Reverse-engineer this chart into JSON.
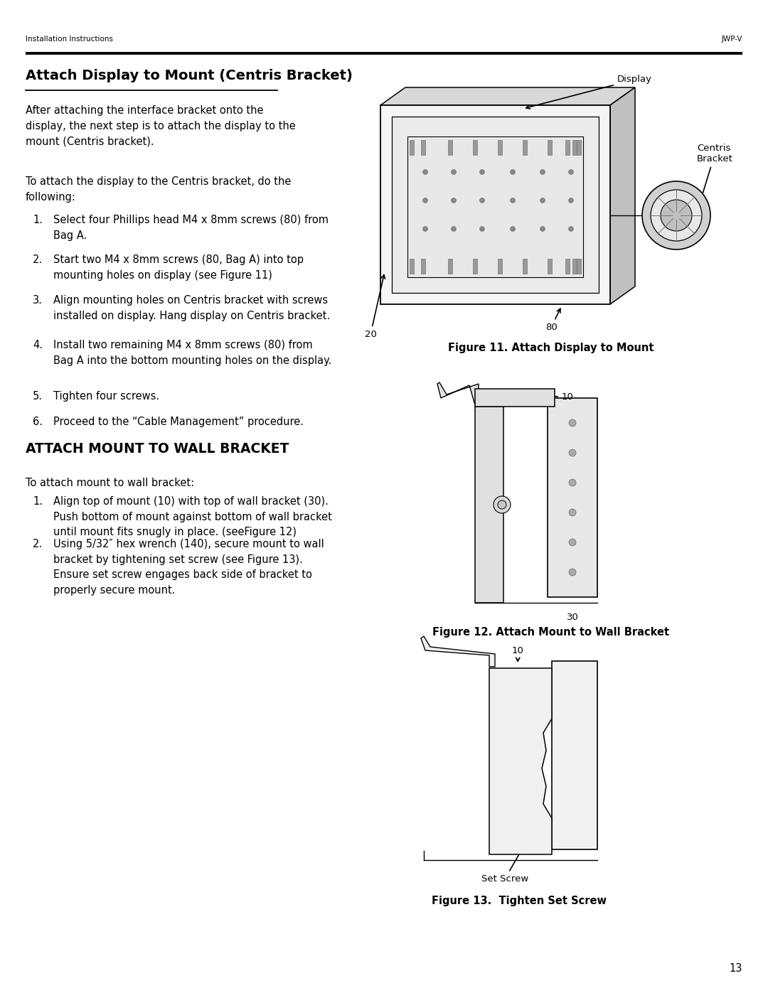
{
  "page_width": 10.8,
  "page_height": 13.97,
  "bg_color": "#ffffff",
  "header_left": "Installation Instructions",
  "header_right": "JWP-V",
  "footer_page": "13",
  "section1_title": "Attach Display to Mount (Centris Bracket)",
  "section1_body1": "After attaching the interface bracket onto the\ndisplay, the next step is to attach the display to the\nmount (Centris bracket).",
  "section1_body2": "To attach the display to the Centris bracket, do the\nfollowing:",
  "section1_steps": [
    "Select four Phillips head M4 x 8mm screws (80) from\nBag A.",
    "Start two M4 x 8mm screws (80, Bag A) into top\nmounting holes on display (see Figure 11)",
    "Align mounting holes on Centris bracket with screws\ninstalled on display. Hang display on Centris bracket.",
    "Install two remaining M4 x 8mm screws (80) from\nBag A into the bottom mounting holes on the display.",
    "Tighten four screws.",
    "Proceed to the “Cable Management” procedure."
  ],
  "fig11_caption": "Figure 11. Attach Display to Mount",
  "section2_title": "ATTACH MOUNT TO WALL BRACKET",
  "section2_body1": "To attach mount to wall bracket:",
  "section2_steps": [
    "Align top of mount (10) with top of wall bracket (30).\nPush bottom of mount against bottom of wall bracket\nuntil mount fits snugly in place. (seeFigure 12)",
    "Using 5/32″ hex wrench (140), secure mount to wall\nbracket by tightening set screw (see Figure 13).\nEnsure set screw engages back side of bracket to\nproperly secure mount."
  ],
  "fig12_caption": "Figure 12. Attach Mount to Wall Bracket",
  "fig13_caption": "Figure 13.  Tighten Set Screw",
  "fig13_setscrew_label": "Set Screw"
}
